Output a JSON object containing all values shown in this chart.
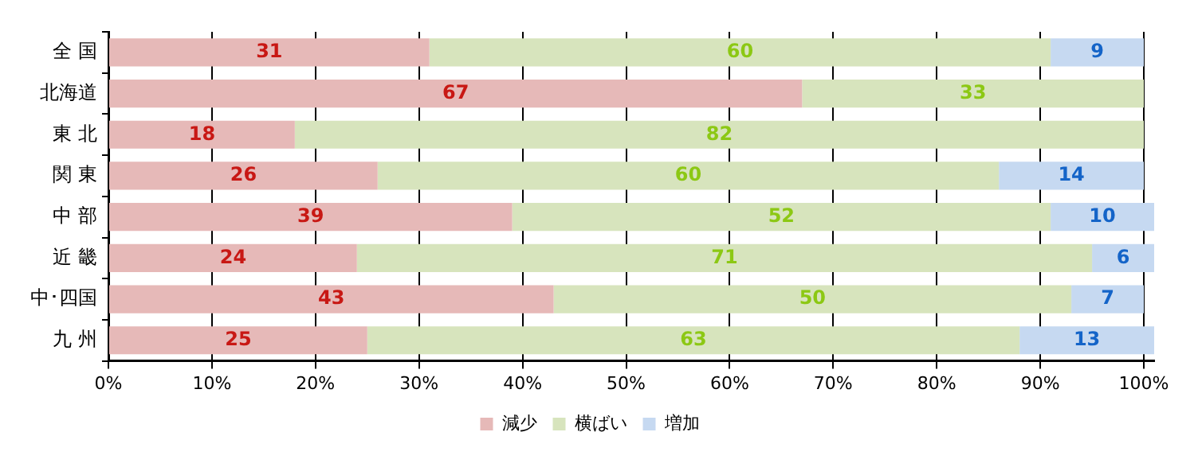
{
  "chart_data": {
    "type": "bar",
    "orientation": "horizontal",
    "stacked": true,
    "categories": [
      "全 国",
      "北海道",
      "東 北",
      "関 東",
      "中 部",
      "近 畿",
      "中･四国",
      "九 州"
    ],
    "series": [
      {
        "name": "減少",
        "color": "#e6b9b8",
        "values": [
          31,
          67,
          18,
          26,
          39,
          24,
          43,
          25
        ]
      },
      {
        "name": "横ばい",
        "color": "#d7e4bd",
        "values": [
          60,
          33,
          82,
          60,
          52,
          71,
          50,
          63
        ]
      },
      {
        "name": "増加",
        "color": "#c6d9f1",
        "values": [
          9,
          null,
          null,
          14,
          10,
          6,
          7,
          13
        ]
      }
    ],
    "xlim": [
      0,
      101
    ],
    "xticks": [
      {
        "value": 0,
        "label": "0%"
      },
      {
        "value": 10,
        "label": "10%"
      },
      {
        "value": 20,
        "label": "20%"
      },
      {
        "value": 30,
        "label": "30%"
      },
      {
        "value": 40,
        "label": "40%"
      },
      {
        "value": 50,
        "label": "50%"
      },
      {
        "value": 60,
        "label": "60%"
      },
      {
        "value": 70,
        "label": "70%"
      },
      {
        "value": 80,
        "label": "80%"
      },
      {
        "value": 90,
        "label": "90%"
      },
      {
        "value": 100,
        "label": "100%"
      }
    ],
    "grid": "x",
    "legend": "bottom",
    "data_labels": true
  }
}
